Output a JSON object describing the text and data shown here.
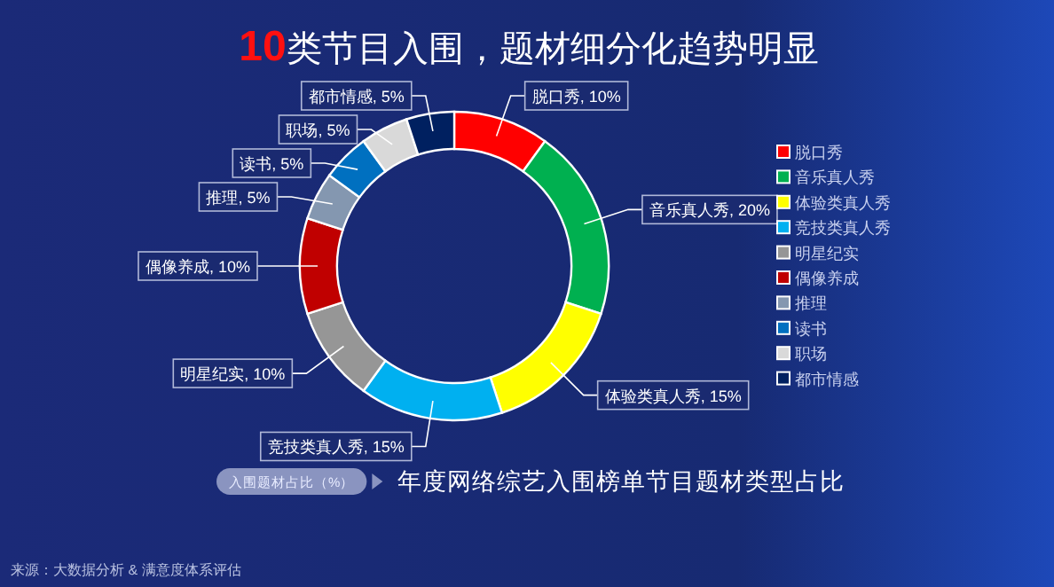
{
  "chart_data": {
    "type": "donut",
    "title": "10类节目入围，题材细分化趋势明显",
    "subtitle": "年度网络综艺入围榜单节目题材类型占比",
    "categories": [
      "脱口秀",
      "音乐真人秀",
      "体验类真人秀",
      "竞技类真人秀",
      "明星纪实",
      "偶像养成",
      "推理",
      "读书",
      "职场",
      "都市情感"
    ],
    "values": [
      10,
      20,
      15,
      15,
      10,
      10,
      5,
      5,
      5,
      5
    ],
    "colors": [
      "#ff0000",
      "#00b050",
      "#ffff00",
      "#00b0f0",
      "#969696",
      "#c00000",
      "#8497b0",
      "#0070c0",
      "#d9d9d9",
      "#002060"
    ],
    "value_labels": [
      "脱口秀, 10%",
      "音乐真人秀, 20%",
      "体验类真人秀, 15%",
      "竞技类真人秀, 15%",
      "明星纪实, 10%",
      "偶像养成, 10%",
      "推理, 5%",
      "读书, 5%",
      "职场, 5%",
      "都市情感, 5%"
    ],
    "legend": "right",
    "annotations": [
      "入围题材占比（%）",
      "来源：大数据分析 & 满意度体系评估"
    ]
  }
}
